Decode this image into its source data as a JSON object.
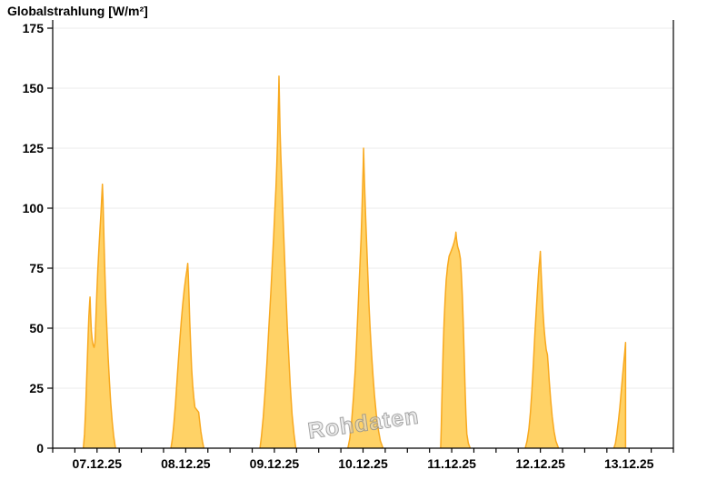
{
  "chart_data": {
    "type": "area",
    "title": "Globalstrahlung [W/m²]",
    "ylabel": "Globalstrahlung [W/m²]",
    "unit": "W/m²",
    "watermark": "Rohdaten",
    "ylim": [
      0,
      175
    ],
    "yticks": [
      0,
      25,
      50,
      75,
      100,
      125,
      150,
      175
    ],
    "x_axis": {
      "days": [
        "07.12.25",
        "08.12.25",
        "09.12.25",
        "10.12.25",
        "11.12.25",
        "12.12.25",
        "13.12.25"
      ],
      "hours_per_day": 24,
      "minor_tick_hours": 6,
      "label_position": "noon"
    },
    "grid": {
      "horizontal": true,
      "vertical": false,
      "color": "#ebebeb"
    },
    "legend": "none",
    "colors": {
      "fill": "#FFD266",
      "stroke": "#F8A91F",
      "axis": "#000000",
      "text": "#000000",
      "watermark_stroke": "#8a8a8a",
      "watermark_fill": "#d9d9d9"
    },
    "daily_max_wm2": [
      110,
      77,
      155,
      125,
      90,
      82,
      44
    ],
    "series": [
      {
        "name": "Globalstrahlung",
        "day_curves": [
          {
            "date": "07.12.25",
            "max": 110,
            "points": [
              [
                8.3,
                0
              ],
              [
                8.6,
                6
              ],
              [
                8.9,
                16
              ],
              [
                9.15,
                27
              ],
              [
                9.4,
                38
              ],
              [
                9.6,
                47
              ],
              [
                9.8,
                55
              ],
              [
                10.0,
                61
              ],
              [
                10.1,
                63
              ],
              [
                10.25,
                56
              ],
              [
                10.45,
                49
              ],
              [
                10.7,
                45
              ],
              [
                10.95,
                43
              ],
              [
                11.2,
                42
              ],
              [
                11.45,
                44
              ],
              [
                11.7,
                55
              ],
              [
                11.95,
                65
              ],
              [
                12.2,
                74
              ],
              [
                12.5,
                83
              ],
              [
                12.8,
                91
              ],
              [
                13.05,
                98
              ],
              [
                13.25,
                104
              ],
              [
                13.45,
                110
              ],
              [
                13.6,
                104
              ],
              [
                13.75,
                95
              ],
              [
                13.95,
                83
              ],
              [
                14.15,
                72
              ],
              [
                14.4,
                60
              ],
              [
                14.7,
                48
              ],
              [
                15.0,
                38
              ],
              [
                15.35,
                28
              ],
              [
                15.7,
                19
              ],
              [
                16.1,
                11
              ],
              [
                16.5,
                5
              ],
              [
                17.0,
                0
              ]
            ]
          },
          {
            "date": "08.12.25",
            "max": 77,
            "points": [
              [
                8.0,
                0
              ],
              [
                8.4,
                4
              ],
              [
                8.8,
                10
              ],
              [
                9.2,
                18
              ],
              [
                9.6,
                27
              ],
              [
                10.0,
                36
              ],
              [
                10.4,
                45
              ],
              [
                10.8,
                53
              ],
              [
                11.2,
                60
              ],
              [
                11.6,
                66
              ],
              [
                12.0,
                71
              ],
              [
                12.3,
                74
              ],
              [
                12.55,
                77
              ],
              [
                12.7,
                72
              ],
              [
                12.9,
                63
              ],
              [
                13.1,
                53
              ],
              [
                13.35,
                43
              ],
              [
                13.6,
                33
              ],
              [
                13.9,
                26
              ],
              [
                14.2,
                21
              ],
              [
                14.5,
                17
              ],
              [
                15.0,
                16
              ],
              [
                15.5,
                15
              ],
              [
                15.8,
                11
              ],
              [
                16.1,
                7
              ],
              [
                16.5,
                3
              ],
              [
                16.9,
                0
              ]
            ]
          },
          {
            "date": "09.12.25",
            "max": 155,
            "points": [
              [
                8.1,
                0
              ],
              [
                8.5,
                5
              ],
              [
                9.0,
                13
              ],
              [
                9.5,
                24
              ],
              [
                10.0,
                36
              ],
              [
                10.5,
                50
              ],
              [
                11.0,
                64
              ],
              [
                11.4,
                76
              ],
              [
                11.8,
                88
              ],
              [
                12.1,
                98
              ],
              [
                12.4,
                108
              ],
              [
                12.65,
                118
              ],
              [
                12.85,
                128
              ],
              [
                13.0,
                138
              ],
              [
                13.15,
                147
              ],
              [
                13.25,
                155
              ],
              [
                13.4,
                143
              ],
              [
                13.55,
                132
              ],
              [
                13.75,
                122
              ],
              [
                14.0,
                111
              ],
              [
                14.3,
                98
              ],
              [
                14.6,
                86
              ],
              [
                14.9,
                74
              ],
              [
                15.2,
                62
              ],
              [
                15.5,
                50
              ],
              [
                15.9,
                38
              ],
              [
                16.3,
                26
              ],
              [
                16.8,
                14
              ],
              [
                17.3,
                6
              ],
              [
                17.8,
                0
              ]
            ]
          },
          {
            "date": "10.12.25",
            "max": 125,
            "points": [
              [
                7.9,
                0
              ],
              [
                8.4,
                4
              ],
              [
                8.9,
                11
              ],
              [
                9.4,
                21
              ],
              [
                9.9,
                33
              ],
              [
                10.3,
                46
              ],
              [
                10.7,
                60
              ],
              [
                11.1,
                74
              ],
              [
                11.45,
                87
              ],
              [
                11.7,
                99
              ],
              [
                11.9,
                110
              ],
              [
                12.05,
                118
              ],
              [
                12.15,
                125
              ],
              [
                12.3,
                116
              ],
              [
                12.5,
                106
              ],
              [
                12.75,
                95
              ],
              [
                13.0,
                84
              ],
              [
                13.3,
                72
              ],
              [
                13.6,
                60
              ],
              [
                13.95,
                49
              ],
              [
                14.3,
                39
              ],
              [
                14.7,
                30
              ],
              [
                15.1,
                22
              ],
              [
                15.6,
                14
              ],
              [
                16.1,
                8
              ],
              [
                16.7,
                3
              ],
              [
                17.4,
                0
              ]
            ]
          },
          {
            "date": "11.12.25",
            "max": 90,
            "points": [
              [
                9.0,
                0
              ],
              [
                9.15,
                8
              ],
              [
                9.3,
                18
              ],
              [
                9.5,
                30
              ],
              [
                9.7,
                42
              ],
              [
                9.95,
                53
              ],
              [
                10.2,
                62
              ],
              [
                10.5,
                70
              ],
              [
                10.9,
                76
              ],
              [
                11.3,
                80
              ],
              [
                11.8,
                82
              ],
              [
                12.3,
                84
              ],
              [
                12.7,
                86
              ],
              [
                13.0,
                88
              ],
              [
                13.15,
                90
              ],
              [
                13.3,
                87
              ],
              [
                13.6,
                84
              ],
              [
                14.0,
                82
              ],
              [
                14.35,
                79
              ],
              [
                14.6,
                73
              ],
              [
                14.85,
                64
              ],
              [
                15.1,
                53
              ],
              [
                15.35,
                40
              ],
              [
                15.6,
                26
              ],
              [
                15.85,
                14
              ],
              [
                16.1,
                6
              ],
              [
                16.5,
                2
              ],
              [
                17.0,
                0
              ]
            ]
          },
          {
            "date": "12.12.25",
            "max": 82,
            "points": [
              [
                7.9,
                0
              ],
              [
                8.4,
                3
              ],
              [
                8.9,
                8
              ],
              [
                9.3,
                15
              ],
              [
                9.7,
                24
              ],
              [
                10.1,
                35
              ],
              [
                10.5,
                47
              ],
              [
                10.9,
                58
              ],
              [
                11.3,
                68
              ],
              [
                11.6,
                75
              ],
              [
                11.85,
                79
              ],
              [
                12.0,
                82
              ],
              [
                12.2,
                73
              ],
              [
                12.45,
                65
              ],
              [
                12.7,
                57
              ],
              [
                13.0,
                50
              ],
              [
                13.3,
                45
              ],
              [
                13.6,
                41
              ],
              [
                13.9,
                39
              ],
              [
                14.1,
                35
              ],
              [
                14.4,
                28
              ],
              [
                14.8,
                20
              ],
              [
                15.2,
                13
              ],
              [
                15.7,
                7
              ],
              [
                16.2,
                3
              ],
              [
                16.9,
                0
              ]
            ]
          },
          {
            "date": "13.12.25",
            "max": 44,
            "points": [
              [
                7.9,
                0
              ],
              [
                8.3,
                2
              ],
              [
                8.7,
                6
              ],
              [
                9.1,
                11
              ],
              [
                9.5,
                17
              ],
              [
                9.9,
                24
              ],
              [
                10.3,
                31
              ],
              [
                10.6,
                36
              ],
              [
                10.85,
                40
              ],
              [
                11.05,
                44
              ],
              [
                11.05,
                0
              ]
            ]
          }
        ]
      }
    ]
  }
}
